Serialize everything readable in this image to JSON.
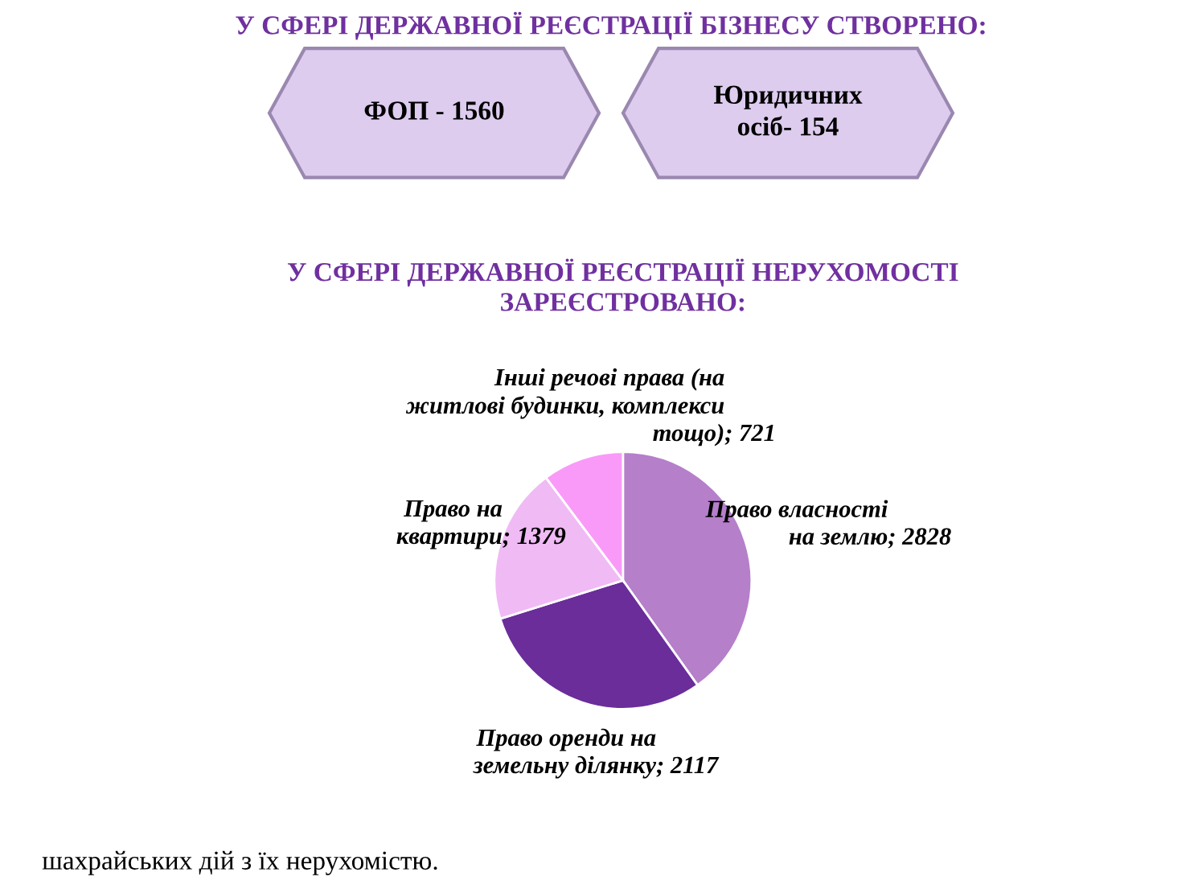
{
  "chart_data": [
    {
      "type": "other",
      "title": "У СФЕРІ ДЕРЖАВНОЇ РЕЄСТРАЦІЇ БІЗНЕСУ СТВОРЕНО:",
      "annotations": [
        "ФОП - 1560",
        "Юридичних\nосіб- 154"
      ]
    },
    {
      "type": "pie",
      "title": "У СФЕРІ ДЕРЖАВНОЇ РЕЄСТРАЦІЇ НЕРУХОМОСТІ\nЗАРЕЄСТРОВАНО:",
      "categories": [
        "Право власності\nна землю",
        "Право оренди на\nземельну ділянку",
        "Право на\nквартири",
        "Інші речові права (на\nжитлові будинки, комплекси\nтощо)"
      ],
      "values": [
        2828,
        2117,
        1379,
        721
      ],
      "colors": [
        "#b57fca",
        "#6a2d9a",
        "#f0baf5",
        "#f99af8"
      ],
      "value_labels": [
        "; 2828",
        "; 2117",
        "; 1379",
        "; 721"
      ],
      "annotations": [
        "шахрайських дій з їх нерухомістю."
      ]
    }
  ]
}
